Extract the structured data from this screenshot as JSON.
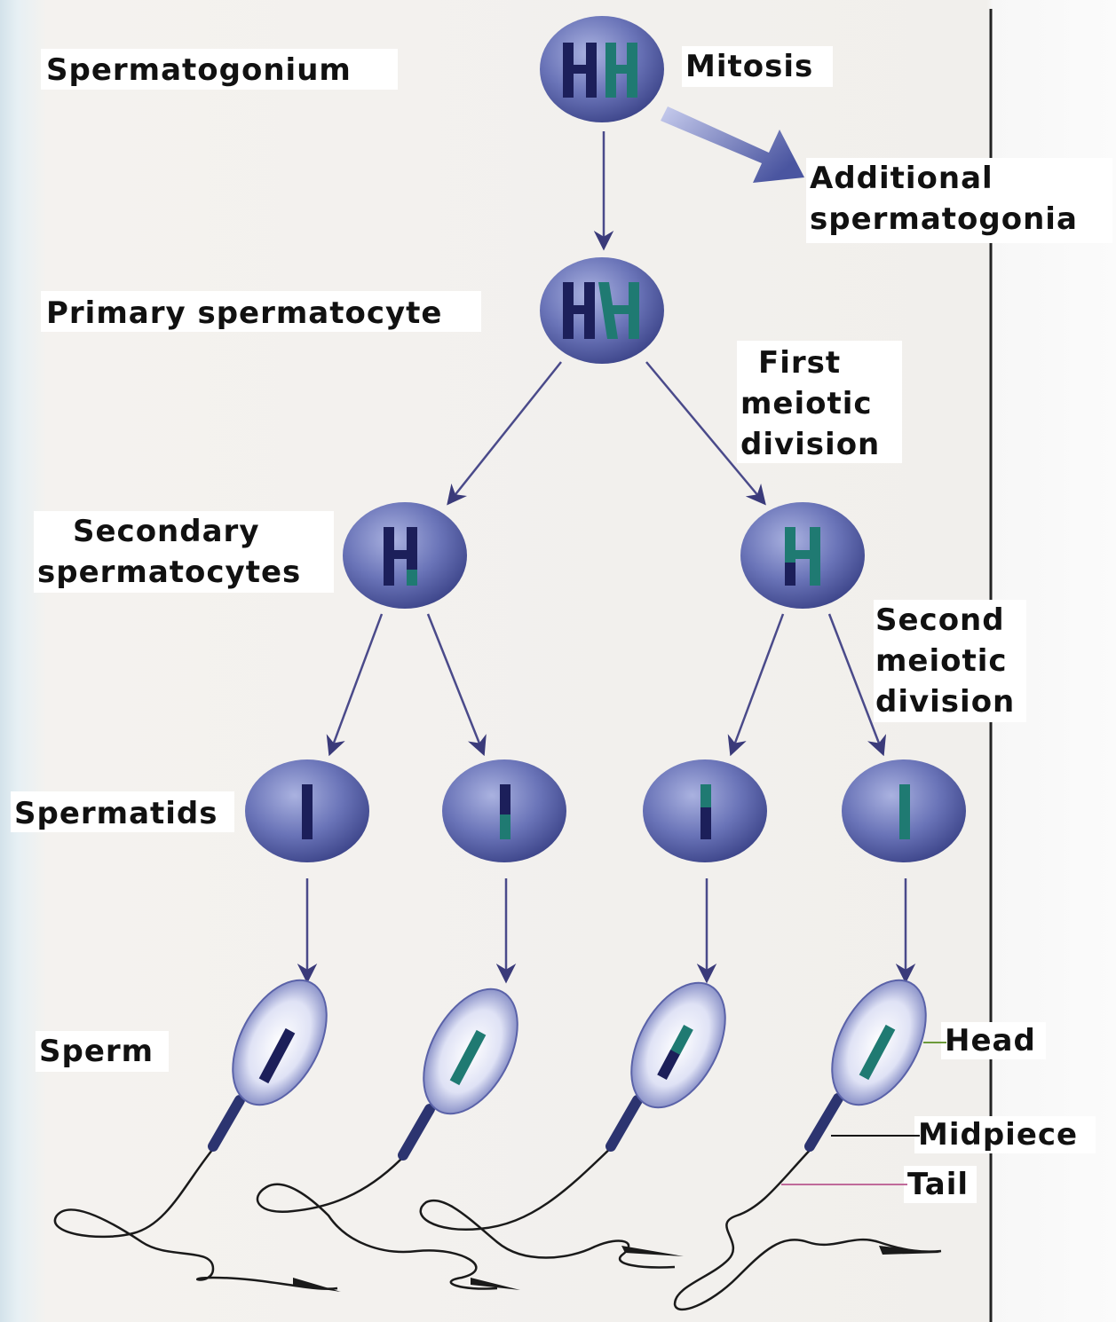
{
  "stages": {
    "spermatogonium": "Spermatogonium",
    "primary": "Primary spermatocyte",
    "secondary_1": "Secondary",
    "secondary_2": "spermatocytes",
    "spermatids": "Spermatids",
    "sperm": "Sperm"
  },
  "processes": {
    "mitosis": "Mitosis",
    "additional_1": "Additional",
    "additional_2": "spermatogonia",
    "first_1": "First",
    "first_2": "meiotic",
    "first_3": "division",
    "second_1": "Second",
    "second_2": "meiotic",
    "second_3": "division"
  },
  "parts": {
    "head": "Head",
    "midpiece": "Midpiece",
    "tail": "Tail"
  },
  "colors": {
    "cell": "#5b64a8",
    "chromosome_navy": "#1c1f5a",
    "chromosome_teal": "#1f7a72",
    "arrow": "#4a4a8a"
  }
}
